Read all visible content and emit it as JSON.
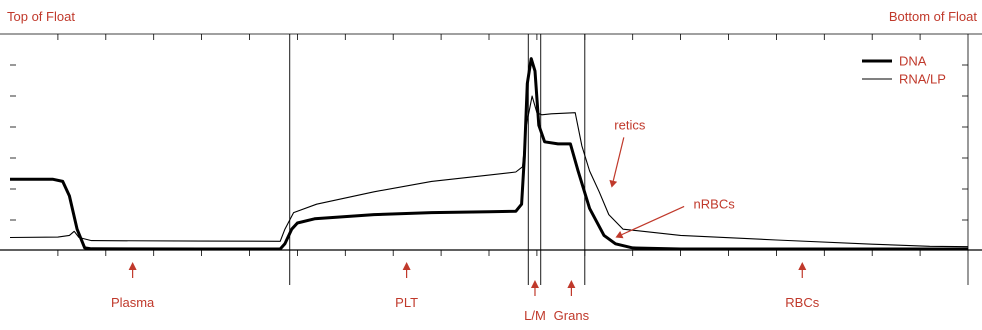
{
  "chart_data": {
    "type": "line",
    "top_left_label": "Top of Float",
    "top_right_label": "Bottom of Float",
    "xlabel": "",
    "ylabel": "",
    "grid": false,
    "legend_position": "top-right",
    "colors": {
      "axis": "#000000",
      "annotation": "#c0392b"
    },
    "x_range": [
      0,
      1000
    ],
    "y_range": [
      0,
      100
    ],
    "region_boundaries": [
      292,
      541,
      554,
      600
    ],
    "series": [
      {
        "name": "DNA",
        "stroke": "thick",
        "points": [
          [
            0,
            34
          ],
          [
            45,
            34
          ],
          [
            55,
            33
          ],
          [
            62,
            26
          ],
          [
            70,
            10
          ],
          [
            78,
            1
          ],
          [
            85,
            0.6
          ],
          [
            200,
            0.5
          ],
          [
            282,
            0.5
          ],
          [
            287,
            3
          ],
          [
            294,
            10
          ],
          [
            300,
            13
          ],
          [
            318,
            15
          ],
          [
            380,
            17
          ],
          [
            440,
            18
          ],
          [
            500,
            18.4
          ],
          [
            528,
            18.6
          ],
          [
            534,
            22
          ],
          [
            537,
            45
          ],
          [
            540,
            80
          ],
          [
            544,
            92
          ],
          [
            548,
            86
          ],
          [
            552,
            60
          ],
          [
            558,
            52
          ],
          [
            572,
            51
          ],
          [
            585,
            51
          ],
          [
            593,
            38
          ],
          [
            605,
            20
          ],
          [
            620,
            7
          ],
          [
            632,
            3
          ],
          [
            650,
            1
          ],
          [
            700,
            0.5
          ],
          [
            1000,
            0.5
          ]
        ]
      },
      {
        "name": "RNA/LP",
        "stroke": "thin",
        "points": [
          [
            0,
            6
          ],
          [
            50,
            6.2
          ],
          [
            62,
            7
          ],
          [
            67,
            9
          ],
          [
            72,
            6
          ],
          [
            85,
            4.5
          ],
          [
            200,
            4.3
          ],
          [
            282,
            4.2
          ],
          [
            287,
            10
          ],
          [
            296,
            18
          ],
          [
            320,
            22
          ],
          [
            380,
            28
          ],
          [
            440,
            33
          ],
          [
            500,
            36
          ],
          [
            528,
            37.5
          ],
          [
            535,
            40
          ],
          [
            539,
            60
          ],
          [
            545,
            74
          ],
          [
            550,
            66
          ],
          [
            555,
            65
          ],
          [
            565,
            65.5
          ],
          [
            590,
            66
          ],
          [
            597,
            50
          ],
          [
            605,
            38
          ],
          [
            615,
            28
          ],
          [
            625,
            17
          ],
          [
            640,
            10
          ],
          [
            700,
            7
          ],
          [
            800,
            4.8
          ],
          [
            900,
            2.8
          ],
          [
            960,
            1.8
          ],
          [
            1000,
            1.6
          ]
        ]
      }
    ],
    "region_labels": [
      {
        "text": "Plasma",
        "x": 128
      },
      {
        "text": "PLT",
        "x": 414
      },
      {
        "text": "L/M",
        "x": 548,
        "offset": "low"
      },
      {
        "text": "Grans",
        "x": 586,
        "offset": "low"
      },
      {
        "text": "RBCs",
        "x": 827
      }
    ],
    "annotations": [
      {
        "text": "retics",
        "text_x": 647,
        "text_y": 58,
        "target_x": 628,
        "target_y": 30
      },
      {
        "text": "nRBCs",
        "text_x": 735,
        "text_y": 20,
        "target_x": 632,
        "target_y": 6
      }
    ]
  }
}
